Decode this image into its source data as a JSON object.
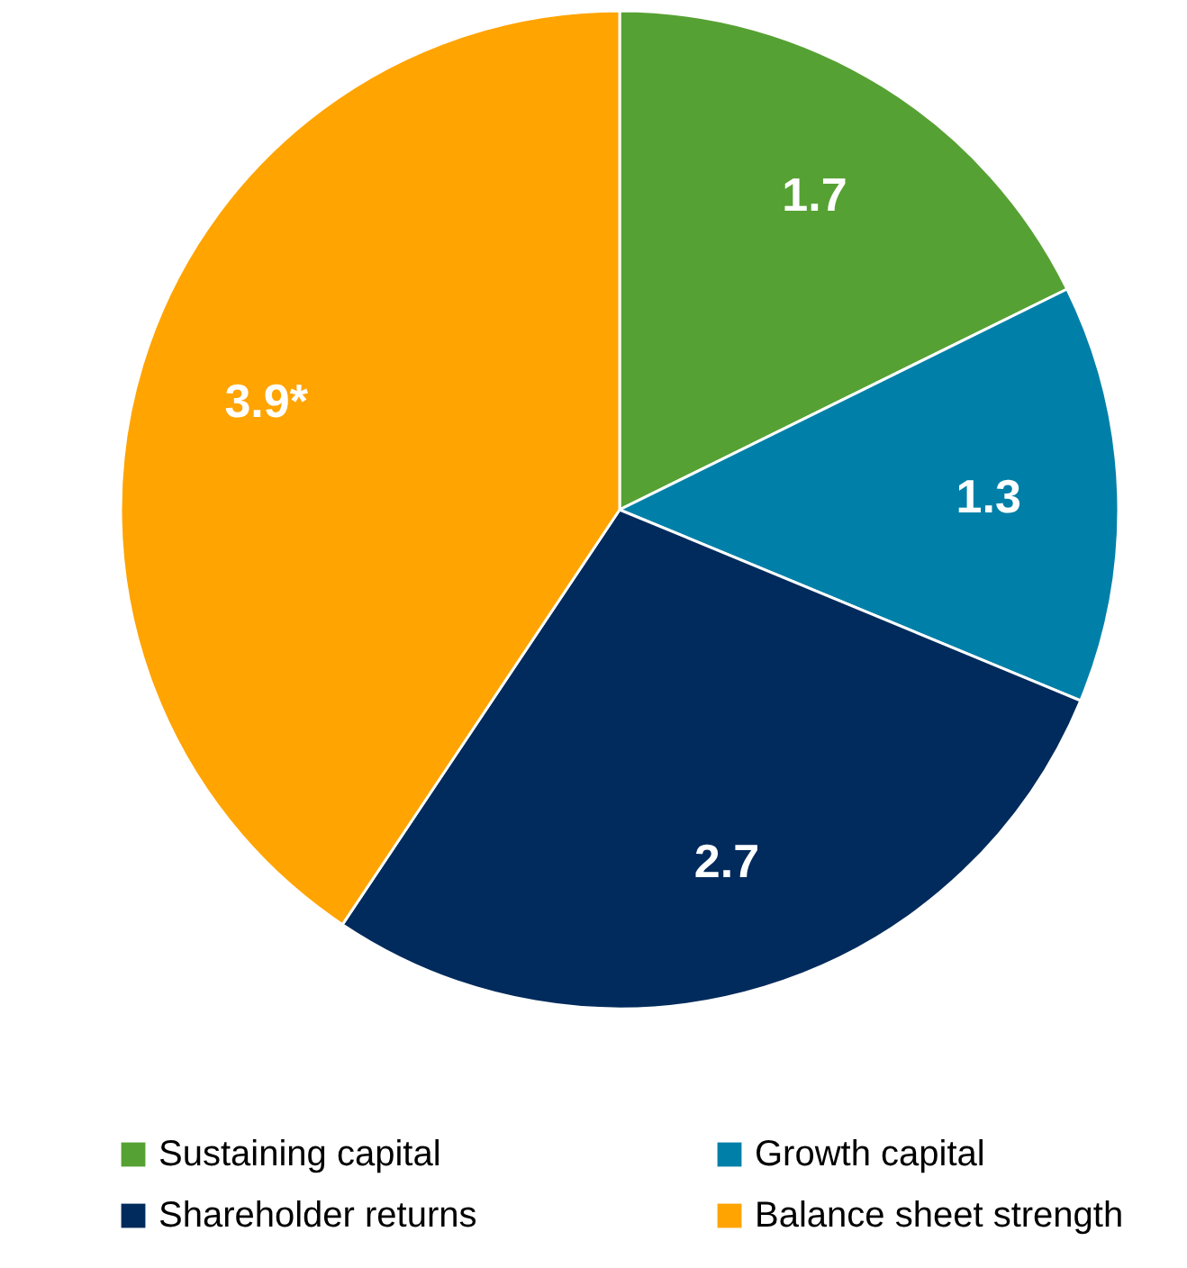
{
  "chart_data": {
    "type": "pie",
    "categories": [
      "Sustaining capital",
      "Growth capital",
      "Shareholder returns",
      "Balance sheet strength"
    ],
    "values": [
      1.7,
      1.3,
      2.7,
      3.9
    ],
    "colors": [
      "#56a133",
      "#0080a8",
      "#002b5c",
      "#ffa400"
    ],
    "value_labels": [
      "1.7",
      "1.3",
      "2.7",
      "3.9*"
    ],
    "legend": "bottom"
  }
}
